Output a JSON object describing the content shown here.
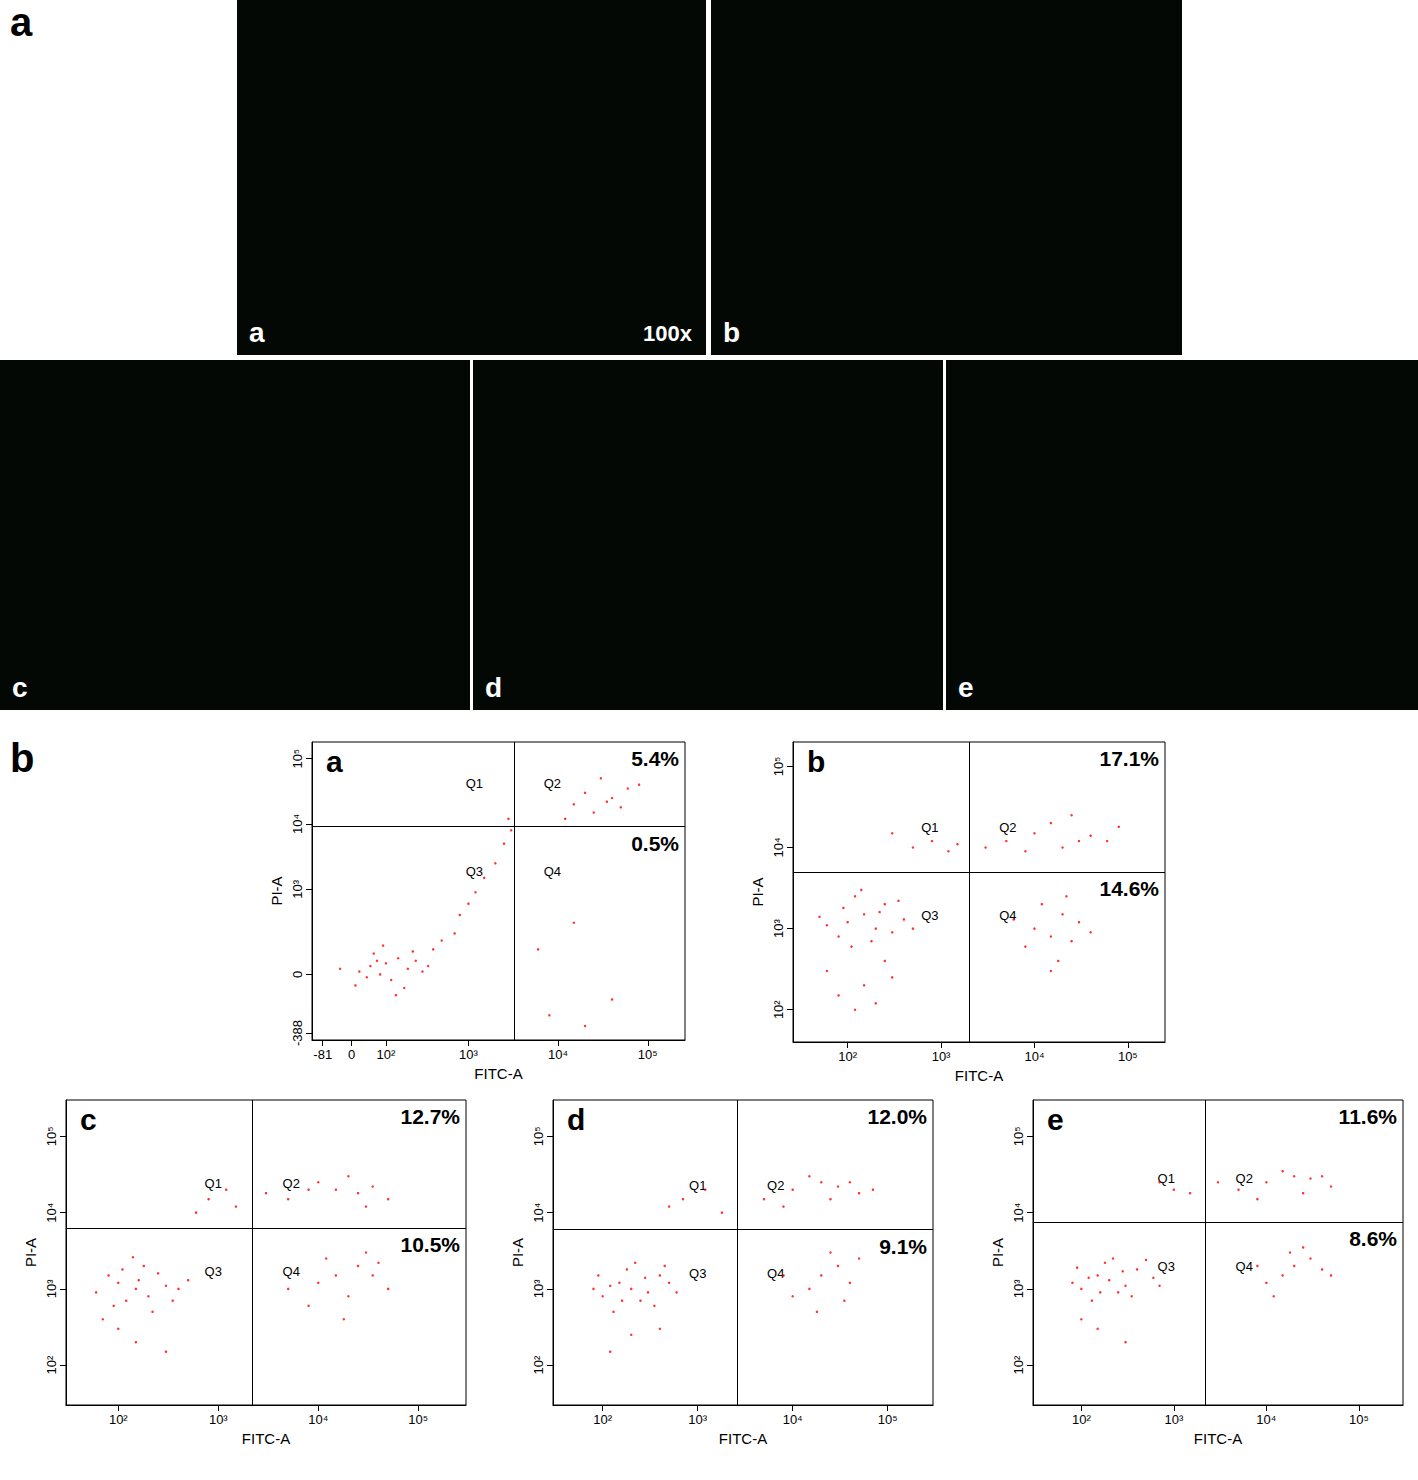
{
  "panel_labels": [
    "a",
    "b"
  ],
  "micrographs": [
    {
      "label": "a",
      "magnification": "100x"
    },
    {
      "label": "b"
    },
    {
      "label": "c"
    },
    {
      "label": "d"
    },
    {
      "label": "e"
    }
  ],
  "chart_data": [
    {
      "type": "scatter",
      "title": "a",
      "x_label": "FITC-A",
      "y_label": "PI-A",
      "color": "#ff0000",
      "marker": "dot",
      "xlim": [
        -120,
        260000
      ],
      "xticks": [
        -81,
        0,
        {
          "value": 100,
          "label": "10²"
        },
        {
          "value": 1000,
          "label": "10³"
        },
        {
          "value": 10000,
          "label": "10⁴"
        },
        {
          "value": 100000,
          "label": "10⁵"
        }
      ],
      "ylim": [
        -500,
        180000
      ],
      "yticks": [
        -388,
        0,
        {
          "value": 1000,
          "label": "10³"
        },
        {
          "value": 10000,
          "label": "10⁴"
        },
        {
          "value": 100000,
          "label": "10⁵"
        }
      ],
      "gates": {
        "x": 3200,
        "y": 9000
      },
      "quadrant_labels": [
        "Q1",
        "Q2",
        "Q3",
        "Q4"
      ],
      "quadrant_percent": [
        {
          "quadrant": "Q2",
          "value": 5.4,
          "label": "5.4%"
        },
        {
          "quadrant": "Q4",
          "value": 0.5,
          "label": "0.5%"
        }
      ],
      "points": [
        [
          20,
          10
        ],
        [
          50,
          30
        ],
        [
          80,
          0
        ],
        [
          100,
          40
        ],
        [
          120,
          -20
        ],
        [
          150,
          60
        ],
        [
          200,
          20
        ],
        [
          250,
          50
        ],
        [
          300,
          10
        ],
        [
          10,
          -40
        ],
        [
          -30,
          20
        ],
        [
          60,
          80
        ],
        [
          180,
          -50
        ],
        [
          350,
          30
        ],
        [
          400,
          100
        ],
        [
          90,
          120
        ],
        [
          140,
          -80
        ],
        [
          230,
          90
        ],
        [
          40,
          -10
        ],
        [
          70,
          50
        ],
        [
          500,
          150
        ],
        [
          800,
          400
        ],
        [
          1200,
          900
        ],
        [
          1500,
          1500
        ],
        [
          2000,
          2500
        ],
        [
          700,
          200
        ],
        [
          1000,
          600
        ],
        [
          2500,
          5000
        ],
        [
          3000,
          8000
        ],
        [
          2800,
          12000
        ],
        [
          15000,
          20000
        ],
        [
          25000,
          15000
        ],
        [
          40000,
          25000
        ],
        [
          60000,
          35000
        ],
        [
          30000,
          50000
        ],
        [
          20000,
          30000
        ],
        [
          50000,
          18000
        ],
        [
          80000,
          40000
        ],
        [
          12000,
          12000
        ],
        [
          35000,
          22000
        ],
        [
          8000,
          -200
        ],
        [
          15000,
          300
        ],
        [
          40000,
          -100
        ],
        [
          6000,
          100
        ],
        [
          20000,
          -300
        ]
      ]
    },
    {
      "type": "scatter",
      "title": "b",
      "x_label": "FITC-A",
      "y_label": "PI-A",
      "color": "#ff0000",
      "marker": "dot",
      "log": true,
      "xlim": [
        26,
        250000
      ],
      "xticks": [
        {
          "value": 100,
          "label": "10²"
        },
        {
          "value": 1000,
          "label": "10³"
        },
        {
          "value": 10000,
          "label": "10⁴"
        },
        {
          "value": 100000,
          "label": "10⁵"
        }
      ],
      "ylim": [
        40,
        200000
      ],
      "yticks": [
        {
          "value": 100,
          "label": "10²"
        },
        {
          "value": 1000,
          "label": "10³"
        },
        {
          "value": 10000,
          "label": "10⁴"
        },
        {
          "value": 100000,
          "label": "10⁵"
        }
      ],
      "gates": {
        "x": 2000,
        "y": 5000
      },
      "quadrant_labels": [
        "Q1",
        "Q2",
        "Q3",
        "Q4"
      ],
      "quadrant_percent": [
        {
          "quadrant": "Q2",
          "value": 17.1,
          "label": "17.1%"
        },
        {
          "quadrant": "Q4",
          "value": 14.6,
          "label": "14.6%"
        }
      ],
      "points": [
        [
          100,
          1200
        ],
        [
          150,
          1500
        ],
        [
          200,
          1000
        ],
        [
          80,
          800
        ],
        [
          250,
          2000
        ],
        [
          120,
          2500
        ],
        [
          60,
          1100
        ],
        [
          300,
          900
        ],
        [
          180,
          700
        ],
        [
          90,
          1800
        ],
        [
          400,
          1300
        ],
        [
          220,
          1600
        ],
        [
          140,
          3000
        ],
        [
          50,
          1400
        ],
        [
          350,
          2200
        ],
        [
          500,
          1000
        ],
        [
          110,
          600
        ],
        [
          80,
          150
        ],
        [
          150,
          200
        ],
        [
          200,
          120
        ],
        [
          300,
          250
        ],
        [
          60,
          300
        ],
        [
          120,
          100
        ],
        [
          250,
          400
        ],
        [
          10000,
          1000
        ],
        [
          15000,
          800
        ],
        [
          20000,
          1500
        ],
        [
          8000,
          600
        ],
        [
          25000,
          700
        ],
        [
          12000,
          2000
        ],
        [
          30000,
          1200
        ],
        [
          18000,
          400
        ],
        [
          40000,
          900
        ],
        [
          6000,
          1300
        ],
        [
          15000,
          300
        ],
        [
          22000,
          2500
        ],
        [
          5000,
          12000
        ],
        [
          10000,
          15000
        ],
        [
          20000,
          10000
        ],
        [
          40000,
          14000
        ],
        [
          3000,
          10000
        ],
        [
          15000,
          20000
        ],
        [
          60000,
          12000
        ],
        [
          80000,
          18000
        ],
        [
          25000,
          25000
        ],
        [
          8000,
          9000
        ],
        [
          30000,
          12000
        ],
        [
          500,
          10000
        ],
        [
          800,
          12000
        ],
        [
          1200,
          9000
        ],
        [
          300,
          15000
        ],
        [
          1500,
          11000
        ]
      ]
    },
    {
      "type": "scatter",
      "title": "c",
      "x_label": "FITC-A",
      "y_label": "PI-A",
      "color": "#ff0000",
      "marker": "dot",
      "log": true,
      "xlim": [
        30,
        300000
      ],
      "xticks": [
        {
          "value": 100,
          "label": "10²"
        },
        {
          "value": 1000,
          "label": "10³"
        },
        {
          "value": 10000,
          "label": "10⁴"
        },
        {
          "value": 100000,
          "label": "10⁵"
        }
      ],
      "ylim": [
        30,
        300000
      ],
      "yticks": [
        {
          "value": 100,
          "label": "10²"
        },
        {
          "value": 1000,
          "label": "10³"
        },
        {
          "value": 10000,
          "label": "10⁴"
        },
        {
          "value": 100000,
          "label": "10⁵"
        }
      ],
      "gates": {
        "x": 2200,
        "y": 6300
      },
      "quadrant_labels": [
        "Q1",
        "Q2",
        "Q3",
        "Q4"
      ],
      "quadrant_percent": [
        {
          "quadrant": "Q2",
          "value": 12.7,
          "label": "12.7%"
        },
        {
          "quadrant": "Q4",
          "value": 10.5,
          "label": "10.5%"
        }
      ],
      "points": [
        [
          150,
          1000
        ],
        [
          100,
          1200
        ],
        [
          200,
          800
        ],
        [
          80,
          1500
        ],
        [
          300,
          1100
        ],
        [
          120,
          700
        ],
        [
          250,
          1600
        ],
        [
          60,
          900
        ],
        [
          180,
          2000
        ],
        [
          400,
          1000
        ],
        [
          90,
          600
        ],
        [
          140,
          2600
        ],
        [
          500,
          1300
        ],
        [
          220,
          500
        ],
        [
          110,
          1800
        ],
        [
          70,
          400
        ],
        [
          350,
          700
        ],
        [
          160,
          1300
        ],
        [
          150,
          200
        ],
        [
          300,
          150
        ],
        [
          100,
          300
        ],
        [
          15000,
          1500
        ],
        [
          25000,
          2000
        ],
        [
          20000,
          800
        ],
        [
          10000,
          1200
        ],
        [
          35000,
          1500
        ],
        [
          8000,
          600
        ],
        [
          30000,
          3000
        ],
        [
          18000,
          400
        ],
        [
          50000,
          1000
        ],
        [
          12000,
          2500
        ],
        [
          5000,
          1000
        ],
        [
          40000,
          2200
        ],
        [
          15000,
          20000
        ],
        [
          25000,
          18000
        ],
        [
          10000,
          25000
        ],
        [
          35000,
          22000
        ],
        [
          5000,
          15000
        ],
        [
          20000,
          30000
        ],
        [
          50000,
          15000
        ],
        [
          8000,
          20000
        ],
        [
          30000,
          12000
        ],
        [
          3000,
          18000
        ],
        [
          800,
          15000
        ],
        [
          1200,
          20000
        ],
        [
          600,
          10000
        ],
        [
          1500,
          12000
        ]
      ]
    },
    {
      "type": "scatter",
      "title": "d",
      "x_label": "FITC-A",
      "y_label": "PI-A",
      "color": "#ff0000",
      "marker": "dot",
      "log": true,
      "xlim": [
        30,
        300000
      ],
      "xticks": [
        {
          "value": 100,
          "label": "10²"
        },
        {
          "value": 1000,
          "label": "10³"
        },
        {
          "value": 10000,
          "label": "10⁴"
        },
        {
          "value": 100000,
          "label": "10⁵"
        }
      ],
      "ylim": [
        30,
        300000
      ],
      "yticks": [
        {
          "value": 100,
          "label": "10²"
        },
        {
          "value": 1000,
          "label": "10³"
        },
        {
          "value": 10000,
          "label": "10⁴"
        },
        {
          "value": 100000,
          "label": "10⁵"
        }
      ],
      "gates": {
        "x": 2600,
        "y": 6000
      },
      "quadrant_labels": [
        "Q1",
        "Q2",
        "Q3",
        "Q4"
      ],
      "quadrant_percent": [
        {
          "quadrant": "Q2",
          "value": 12.0,
          "label": "12.0%"
        },
        {
          "quadrant": "Q4",
          "value": 9.1,
          "label": "9.1%"
        }
      ],
      "points": [
        [
          200,
          1000
        ],
        [
          150,
          1200
        ],
        [
          300,
          900
        ],
        [
          100,
          800
        ],
        [
          400,
          1500
        ],
        [
          250,
          700
        ],
        [
          120,
          1100
        ],
        [
          500,
          1200
        ],
        [
          180,
          1800
        ],
        [
          80,
          1000
        ],
        [
          350,
          600
        ],
        [
          220,
          2200
        ],
        [
          600,
          900
        ],
        [
          130,
          500
        ],
        [
          280,
          1400
        ],
        [
          90,
          1500
        ],
        [
          450,
          2000
        ],
        [
          160,
          700
        ],
        [
          200,
          250
        ],
        [
          120,
          150
        ],
        [
          400,
          300
        ],
        [
          20000,
          1500
        ],
        [
          30000,
          2000
        ],
        [
          15000,
          1000
        ],
        [
          10000,
          800
        ],
        [
          40000,
          1200
        ],
        [
          25000,
          3000
        ],
        [
          8000,
          1500
        ],
        [
          50000,
          2500
        ],
        [
          18000,
          500
        ],
        [
          35000,
          700
        ],
        [
          20000,
          25000
        ],
        [
          10000,
          20000
        ],
        [
          30000,
          22000
        ],
        [
          50000,
          18000
        ],
        [
          5000,
          15000
        ],
        [
          15000,
          30000
        ],
        [
          40000,
          25000
        ],
        [
          8000,
          12000
        ],
        [
          25000,
          15000
        ],
        [
          70000,
          20000
        ],
        [
          700,
          15000
        ],
        [
          1200,
          20000
        ],
        [
          500,
          12000
        ],
        [
          1800,
          10000
        ]
      ]
    },
    {
      "type": "scatter",
      "title": "e",
      "x_label": "FITC-A",
      "y_label": "PI-A",
      "color": "#ff0000",
      "marker": "dot",
      "log": true,
      "xlim": [
        30,
        300000
      ],
      "xticks": [
        {
          "value": 100,
          "label": "10²"
        },
        {
          "value": 1000,
          "label": "10³"
        },
        {
          "value": 10000,
          "label": "10⁴"
        },
        {
          "value": 100000,
          "label": "10⁵"
        }
      ],
      "ylim": [
        30,
        300000
      ],
      "yticks": [
        {
          "value": 100,
          "label": "10²"
        },
        {
          "value": 1000,
          "label": "10³"
        },
        {
          "value": 10000,
          "label": "10⁴"
        },
        {
          "value": 100000,
          "label": "10⁵"
        }
      ],
      "gates": {
        "x": 2200,
        "y": 7500
      },
      "quadrant_labels": [
        "Q1",
        "Q2",
        "Q3",
        "Q4"
      ],
      "quadrant_percent": [
        {
          "quadrant": "Q2",
          "value": 11.6,
          "label": "11.6%"
        },
        {
          "quadrant": "Q4",
          "value": 8.6,
          "label": "8.6%"
        }
      ],
      "points": [
        [
          200,
          1300
        ],
        [
          150,
          1500
        ],
        [
          300,
          1100
        ],
        [
          100,
          1000
        ],
        [
          400,
          1800
        ],
        [
          250,
          900
        ],
        [
          120,
          1400
        ],
        [
          600,
          1400
        ],
        [
          180,
          2200
        ],
        [
          80,
          1200
        ],
        [
          350,
          800
        ],
        [
          220,
          2500
        ],
        [
          700,
          1100
        ],
        [
          130,
          700
        ],
        [
          280,
          1700
        ],
        [
          90,
          1900
        ],
        [
          500,
          2400
        ],
        [
          160,
          900
        ],
        [
          150,
          300
        ],
        [
          300,
          200
        ],
        [
          100,
          400
        ],
        [
          20000,
          2000
        ],
        [
          15000,
          1500
        ],
        [
          30000,
          2500
        ],
        [
          10000,
          1200
        ],
        [
          40000,
          1800
        ],
        [
          25000,
          3500
        ],
        [
          8000,
          2000
        ],
        [
          12000,
          800
        ],
        [
          18000,
          3000
        ],
        [
          50000,
          1500
        ],
        [
          20000,
          30000
        ],
        [
          10000,
          25000
        ],
        [
          30000,
          28000
        ],
        [
          50000,
          22000
        ],
        [
          5000,
          20000
        ],
        [
          15000,
          35000
        ],
        [
          40000,
          30000
        ],
        [
          8000,
          15000
        ],
        [
          25000,
          18000
        ],
        [
          3000,
          25000
        ],
        [
          1000,
          20000
        ],
        [
          700,
          25000
        ],
        [
          1500,
          18000
        ]
      ]
    }
  ]
}
